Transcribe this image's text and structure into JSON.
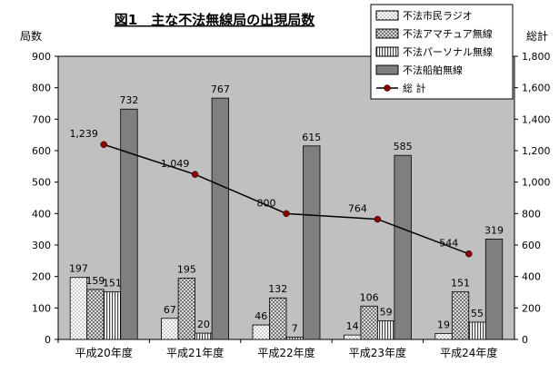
{
  "chart_data": {
    "type": "bar",
    "title": "図1　主な不法無線局の出現局数",
    "ylabel": "局数",
    "y2label": "総計",
    "categories": [
      "平成20年度",
      "平成21年度",
      "平成22年度",
      "平成23年度",
      "平成24年度"
    ],
    "ylim": [
      0,
      900
    ],
    "yticks": [
      "0",
      "100",
      "200",
      "300",
      "400",
      "500",
      "600",
      "700",
      "800",
      "900"
    ],
    "y2lim": [
      0,
      1800
    ],
    "y2ticks": [
      "0",
      "200",
      "400",
      "600",
      "800",
      "1,000",
      "1,200",
      "1,400",
      "1,600",
      "1,800"
    ],
    "series": [
      {
        "name": "不法市民ラジオ",
        "values": [
          197,
          67,
          46,
          14,
          19
        ],
        "labels": [
          "197",
          "67",
          "46",
          "14",
          "19"
        ]
      },
      {
        "name": "不法アマチュア無線",
        "values": [
          159,
          195,
          132,
          106,
          151
        ],
        "labels": [
          "159",
          "195",
          "132",
          "106",
          "151"
        ]
      },
      {
        "name": "不法パーソナル無線",
        "values": [
          151,
          20,
          7,
          59,
          55
        ],
        "labels": [
          "151",
          "20",
          "7",
          "59",
          "55"
        ]
      },
      {
        "name": "不法船舶無線",
        "values": [
          732,
          767,
          615,
          585,
          319
        ],
        "labels": [
          "732",
          "767",
          "615",
          "585",
          "319"
        ]
      }
    ],
    "total": {
      "name": "総 計",
      "values": [
        1239,
        1049,
        800,
        764,
        544
      ],
      "labels": [
        "1,239",
        "1,049",
        "800",
        "764",
        "544"
      ],
      "color": "#8b0000"
    },
    "grid": false,
    "legend": "top-right"
  }
}
